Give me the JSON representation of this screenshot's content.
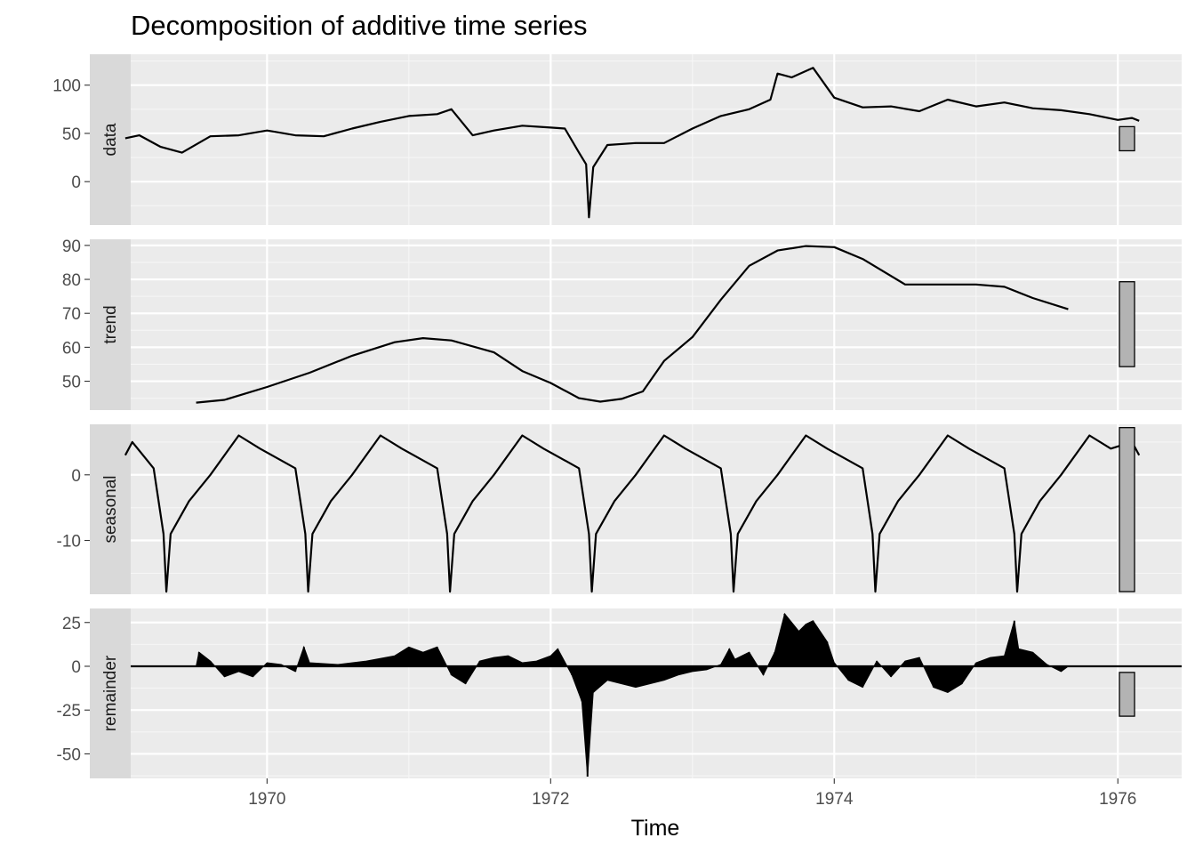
{
  "chart_data": {
    "type": "line",
    "title": "Decomposition of additive time series",
    "xlabel": "Time",
    "x_ticks": [
      1970,
      1972,
      1974,
      1976
    ],
    "xlim": [
      1968.75,
      1976.45
    ],
    "grid": true,
    "panels": [
      {
        "name": "data",
        "ylim": [
          -45,
          132
        ],
        "y_ticks": [
          0,
          50,
          100
        ],
        "y_tick_labels": [
          "0",
          "50",
          "100"
        ],
        "scale_bar": [
          32,
          57
        ],
        "zero_line": false,
        "x": [
          1969.0,
          1969.1,
          1969.25,
          1969.4,
          1969.6,
          1969.8,
          1970.0,
          1970.2,
          1970.4,
          1970.6,
          1970.8,
          1971.0,
          1971.2,
          1971.3,
          1971.45,
          1971.6,
          1971.8,
          1972.0,
          1972.1,
          1972.2,
          1972.25,
          1972.27,
          1972.3,
          1972.4,
          1972.6,
          1972.8,
          1973.0,
          1973.2,
          1973.4,
          1973.55,
          1973.6,
          1973.7,
          1973.85,
          1974.0,
          1974.2,
          1974.4,
          1974.6,
          1974.8,
          1975.0,
          1975.2,
          1975.4,
          1975.6,
          1975.8,
          1976.0,
          1976.1,
          1976.15
        ],
        "y": [
          45,
          48,
          36,
          30,
          47,
          48,
          53,
          48,
          47,
          55,
          62,
          68,
          70,
          75,
          48,
          53,
          58,
          56,
          55,
          30,
          18,
          -37,
          15,
          38,
          40,
          40,
          55,
          68,
          75,
          85,
          112,
          108,
          118,
          87,
          77,
          78,
          73,
          85,
          78,
          82,
          76,
          74,
          70,
          64,
          66,
          63
        ]
      },
      {
        "name": "trend",
        "ylim": [
          41.5,
          91.8
        ],
        "y_ticks": [
          50,
          60,
          70,
          80,
          90
        ],
        "y_tick_labels": [
          "50",
          "60",
          "70",
          "80",
          "90"
        ],
        "scale_bar": [
          54.3,
          79.3
        ],
        "zero_line": false,
        "x": [
          1969.5,
          1969.7,
          1970.0,
          1970.3,
          1970.6,
          1970.9,
          1971.1,
          1971.3,
          1971.6,
          1971.8,
          1972.0,
          1972.2,
          1972.35,
          1972.5,
          1972.65,
          1972.8,
          1973.0,
          1973.2,
          1973.4,
          1973.6,
          1973.8,
          1974.0,
          1974.2,
          1974.5,
          1974.8,
          1975.0,
          1975.2,
          1975.4,
          1975.65
        ],
        "y": [
          43.7,
          44.5,
          48.3,
          52.5,
          57.5,
          61.5,
          62.7,
          62.0,
          58.5,
          53.0,
          49.5,
          45.0,
          44.0,
          44.8,
          47.0,
          56.0,
          63.0,
          74.0,
          84.0,
          88.5,
          89.8,
          89.5,
          86.0,
          78.5,
          78.5,
          78.5,
          77.8,
          74.5,
          71.2
        ]
      },
      {
        "name": "seasonal",
        "ylim": [
          -18.2,
          7.7
        ],
        "y_ticks": [
          -10,
          0
        ],
        "y_tick_labels": [
          "-10",
          "0"
        ],
        "scale_bar": [
          -17.8,
          7.2
        ],
        "zero_line": false,
        "x": [
          1969.0,
          1969.05,
          1969.2,
          1969.27,
          1969.29,
          1969.32,
          1969.45,
          1969.6,
          1969.8,
          1969.95,
          1970.2,
          1970.27,
          1970.29,
          1970.32,
          1970.45,
          1970.6,
          1970.8,
          1970.95,
          1971.2,
          1971.27,
          1971.29,
          1971.32,
          1971.45,
          1971.6,
          1971.8,
          1971.95,
          1972.2,
          1972.27,
          1972.29,
          1972.32,
          1972.45,
          1972.6,
          1972.8,
          1972.95,
          1973.2,
          1973.27,
          1973.29,
          1973.32,
          1973.45,
          1973.6,
          1973.8,
          1973.95,
          1974.2,
          1974.27,
          1974.29,
          1974.32,
          1974.45,
          1974.6,
          1974.8,
          1974.95,
          1975.2,
          1975.27,
          1975.29,
          1975.32,
          1975.45,
          1975.6,
          1975.8,
          1975.95,
          1976.1,
          1976.15
        ],
        "y": [
          3,
          5,
          1,
          -9,
          -17.8,
          -9,
          -4,
          0,
          6,
          4,
          1,
          -9,
          -17.8,
          -9,
          -4,
          0,
          6,
          4,
          1,
          -9,
          -17.8,
          -9,
          -4,
          0,
          6,
          4,
          1,
          -9,
          -17.8,
          -9,
          -4,
          0,
          6,
          4,
          1,
          -9,
          -17.8,
          -9,
          -4,
          0,
          6,
          4,
          1,
          -9,
          -17.8,
          -9,
          -4,
          0,
          6,
          4,
          1,
          -9,
          -17.8,
          -9,
          -4,
          0,
          6,
          4,
          5,
          3
        ]
      },
      {
        "name": "remainder",
        "ylim": [
          -64,
          33
        ],
        "y_ticks": [
          -50,
          -25,
          0,
          25
        ],
        "y_tick_labels": [
          "-50",
          "-25",
          "0",
          "25"
        ],
        "scale_bar": [
          -28.5,
          -3.5
        ],
        "zero_line": true,
        "x": [
          1969.5,
          1969.52,
          1969.6,
          1969.7,
          1969.8,
          1969.9,
          1970.0,
          1970.1,
          1970.2,
          1970.26,
          1970.3,
          1970.5,
          1970.7,
          1970.9,
          1971.0,
          1971.1,
          1971.2,
          1971.3,
          1971.4,
          1971.5,
          1971.6,
          1971.7,
          1971.8,
          1971.9,
          1972.0,
          1972.05,
          1972.15,
          1972.22,
          1972.26,
          1972.3,
          1972.4,
          1972.5,
          1972.6,
          1972.7,
          1972.8,
          1972.9,
          1973.0,
          1973.1,
          1973.2,
          1973.26,
          1973.3,
          1973.4,
          1973.5,
          1973.58,
          1973.65,
          1973.75,
          1973.8,
          1973.85,
          1973.95,
          1974.0,
          1974.1,
          1974.2,
          1974.3,
          1974.4,
          1974.5,
          1974.6,
          1974.7,
          1974.8,
          1974.9,
          1975.0,
          1975.1,
          1975.2,
          1975.27,
          1975.3,
          1975.4,
          1975.5,
          1975.6,
          1975.65
        ],
        "y": [
          0,
          8,
          3,
          -6,
          -3,
          -6,
          2,
          1,
          -3,
          11,
          2,
          1,
          3,
          6,
          11,
          8,
          11,
          -5,
          -10,
          3,
          5,
          6,
          2,
          3,
          6,
          10,
          -5,
          -20,
          -63,
          -15,
          -8,
          -10,
          -12,
          -10,
          -8,
          -5,
          -3,
          -2,
          1,
          10,
          4,
          8,
          -5,
          8,
          30,
          20,
          24,
          26,
          14,
          2,
          -8,
          -12,
          3,
          -6,
          3,
          5,
          -12,
          -15,
          -10,
          2,
          5,
          6,
          26,
          10,
          8,
          1,
          -3,
          0
        ]
      }
    ]
  }
}
